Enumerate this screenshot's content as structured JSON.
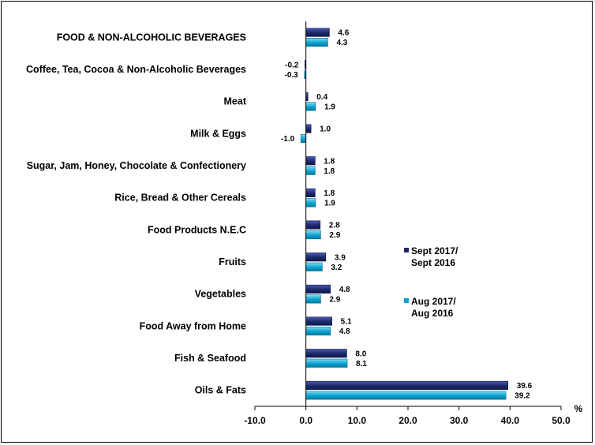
{
  "chart_data": {
    "type": "bar",
    "orientation": "horizontal",
    "categories": [
      "FOOD & NON-ALCOHOLIC BEVERAGES",
      "Coffee, Tea, Cocoa & Non-Alcoholic Beverages",
      "Meat",
      "Milk & Eggs",
      "Sugar, Jam, Honey, Chocolate & Confectionery",
      "Rice, Bread & Other Cereals",
      "Food Products N.E.C",
      "Fruits",
      "Vegetables",
      "Food Away from Home",
      "Fish & Seafood",
      "Oils & Fats"
    ],
    "series": [
      {
        "name": "Sept 2017/ Sept 2016",
        "name_lines": [
          "Sept 2017/",
          "Sept 2016"
        ],
        "color": "#1b2a6b",
        "highlight": "#4a5ab5",
        "values": [
          4.6,
          -0.2,
          0.4,
          1.0,
          1.8,
          1.8,
          2.8,
          3.9,
          4.8,
          5.1,
          8.0,
          39.6
        ],
        "labels": [
          "4.6",
          "-0.2",
          "0.4",
          "1.0",
          "1.8",
          "1.8",
          "2.8",
          "3.9",
          "4.8",
          "5.1",
          "8.0",
          "39.6"
        ]
      },
      {
        "name": "Aug 2017/ Aug 2016",
        "name_lines": [
          "Aug 2017/",
          "Aug 2016"
        ],
        "color": "#0aa3cf",
        "highlight": "#7fdcf5",
        "values": [
          4.3,
          -0.3,
          1.9,
          -1.0,
          1.8,
          1.9,
          2.9,
          3.2,
          2.9,
          4.8,
          8.1,
          39.2
        ],
        "labels": [
          "4.3",
          "-0.3",
          "1.9",
          "-1.0",
          "1.8",
          "1.9",
          "2.9",
          "3.2",
          "2.9",
          "4.8",
          "8.1",
          "39.2"
        ]
      }
    ],
    "xlim": [
      -10,
      50
    ],
    "xticks": [
      -10,
      0,
      10,
      20,
      30,
      40,
      50
    ],
    "xtick_labels": [
      "-10.0",
      "0.0",
      "10.0",
      "20.0",
      "30.0",
      "40.0",
      "50.0"
    ],
    "xlabel": "%",
    "title": "",
    "grid": false,
    "legend_position": "right"
  }
}
